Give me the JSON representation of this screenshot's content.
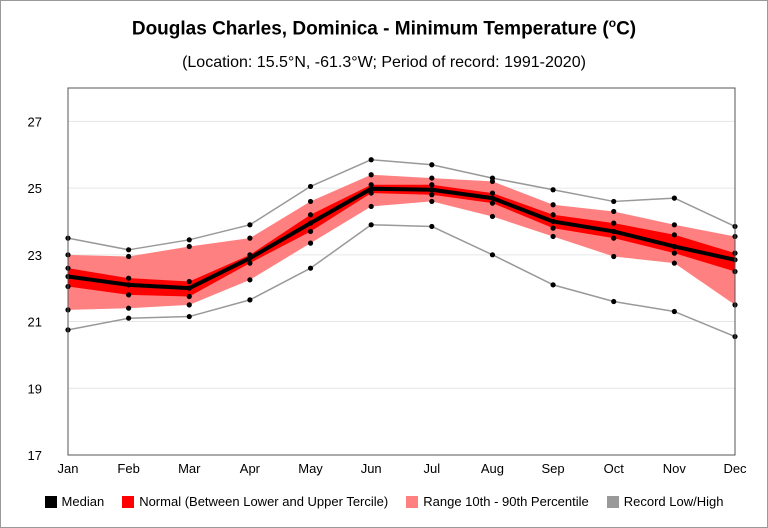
{
  "chart_data": {
    "type": "area",
    "title": "Douglas Charles, Dominica - Minimum Temperature (",
    "title_sup": "o",
    "title_unit": "C)",
    "subtitle": "(Location: 15.5°N, -61.3°W; Period of record: 1991-2020)",
    "categories": [
      "Jan",
      "Feb",
      "Mar",
      "Apr",
      "May",
      "Jun",
      "Jul",
      "Aug",
      "Sep",
      "Oct",
      "Nov",
      "Dec"
    ],
    "y_ticks": [
      "17",
      "19",
      "21",
      "23",
      "25",
      "27"
    ],
    "ylim": [
      17,
      28
    ],
    "grid": true,
    "series": [
      {
        "name": "Record Low/High",
        "role": "record_high",
        "color": "#999999",
        "values": [
          23.5,
          23.15,
          23.45,
          23.9,
          25.05,
          25.85,
          25.7,
          25.3,
          24.95,
          24.6,
          24.7,
          23.85
        ]
      },
      {
        "name": "Record Low/High",
        "role": "record_low",
        "color": "#999999",
        "values": [
          20.75,
          21.1,
          21.15,
          21.65,
          22.6,
          23.9,
          23.85,
          23.0,
          22.1,
          21.6,
          21.3,
          20.55
        ]
      },
      {
        "name": "Range 10th - 90th Percentile",
        "role": "p90",
        "color": "#ff8080",
        "values": [
          23.0,
          22.95,
          23.25,
          23.5,
          24.6,
          25.4,
          25.3,
          25.2,
          24.5,
          24.3,
          23.9,
          23.55
        ]
      },
      {
        "name": "Range 10th - 90th Percentile",
        "role": "p10",
        "color": "#ff8080",
        "values": [
          21.35,
          21.4,
          21.5,
          22.25,
          23.35,
          24.45,
          24.6,
          24.15,
          23.55,
          22.95,
          22.75,
          21.5
        ]
      },
      {
        "name": "Normal (Between Lower and Upper Tercile)",
        "role": "upper_tercile",
        "color": "#ff0000",
        "values": [
          22.6,
          22.3,
          22.2,
          23.0,
          24.2,
          25.1,
          25.1,
          24.85,
          24.2,
          23.95,
          23.6,
          23.05
        ]
      },
      {
        "name": "Normal (Between Lower and Upper Tercile)",
        "role": "lower_tercile",
        "color": "#ff0000",
        "values": [
          22.05,
          21.8,
          21.75,
          22.75,
          23.7,
          24.85,
          24.8,
          24.55,
          23.8,
          23.5,
          23.05,
          22.5
        ]
      },
      {
        "name": "Median",
        "role": "median",
        "color": "#000000",
        "values": [
          22.35,
          22.1,
          22.0,
          22.9,
          23.95,
          24.98,
          24.95,
          24.7,
          24.0,
          23.7,
          23.25,
          22.85
        ]
      }
    ],
    "legend": [
      {
        "label": "Median",
        "color": "#000000"
      },
      {
        "label": "Normal (Between Lower and Upper Tercile)",
        "color": "#ff0000"
      },
      {
        "label": "Range 10th - 90th Percentile",
        "color": "#ff8080"
      },
      {
        "label": "Record Low/High",
        "color": "#999999"
      }
    ],
    "legend_position": "bottom"
  }
}
